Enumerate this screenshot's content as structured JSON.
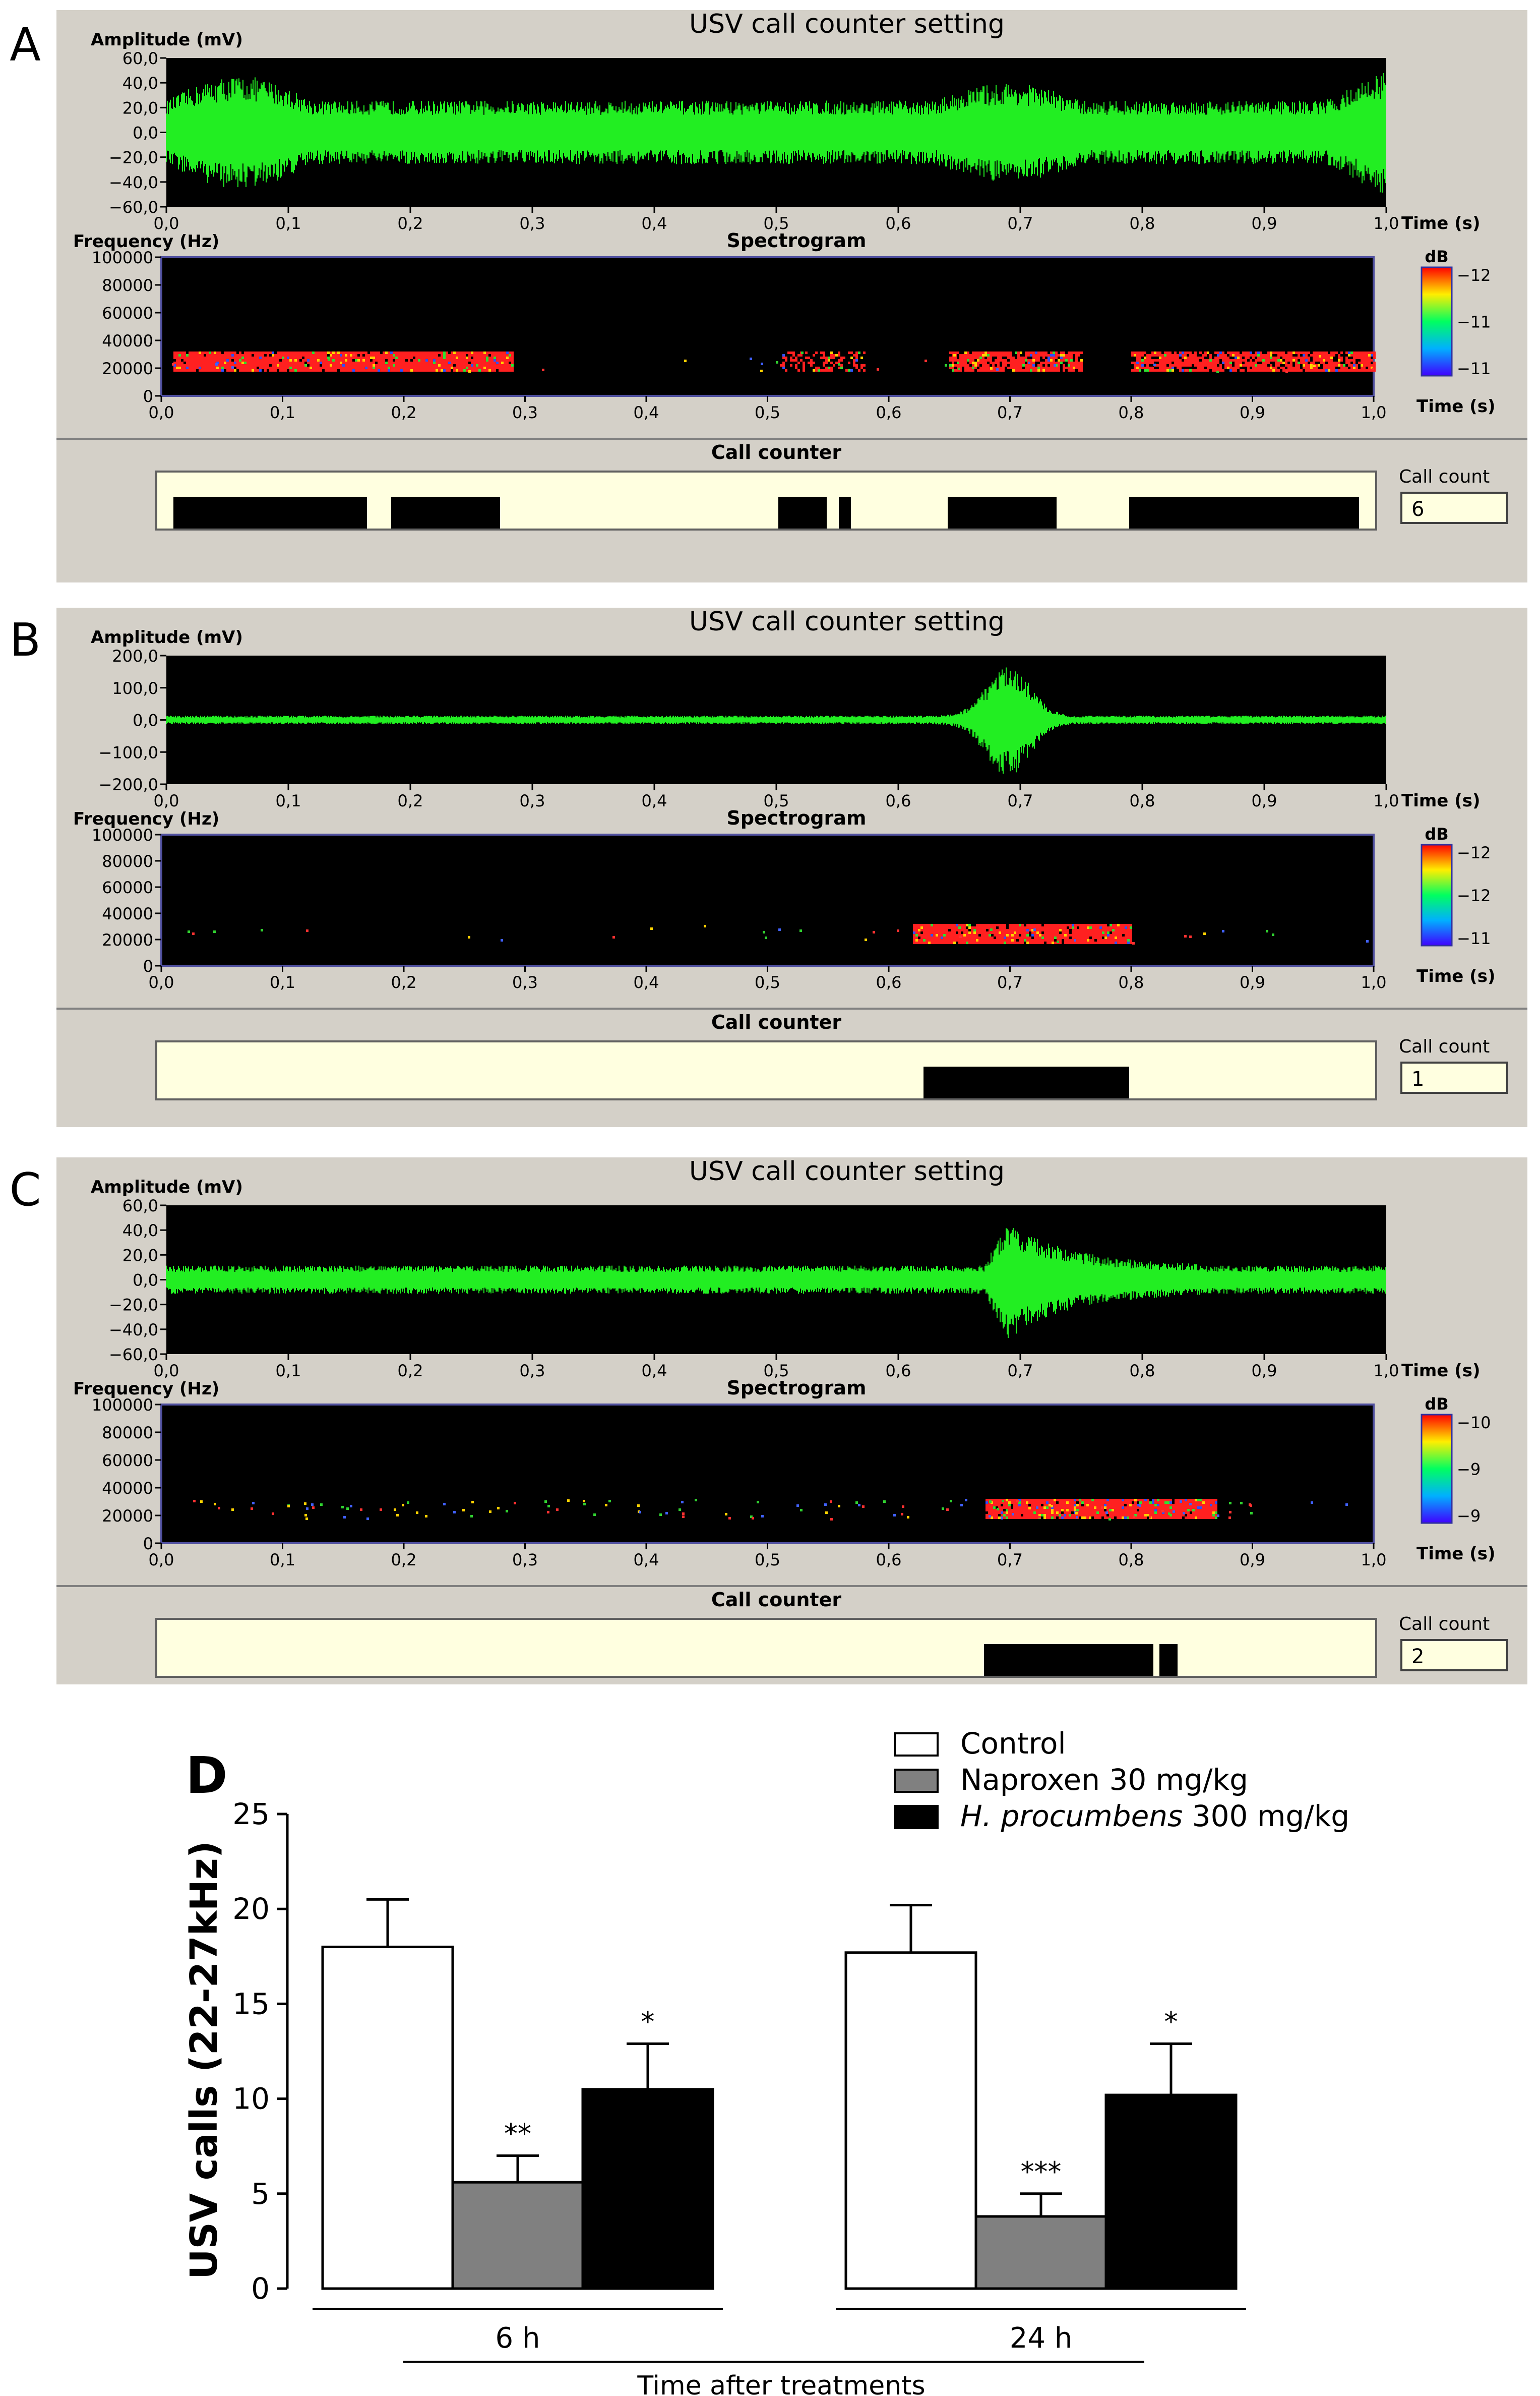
{
  "panels": [
    {
      "letter": "A",
      "title": "USV call counter setting",
      "amp_label": "Amplitude (mV)",
      "amp_ticks": [
        "60,0",
        "40,0",
        "20,0",
        "0,0",
        "−20,0",
        "−40,0",
        "−60,0"
      ],
      "time_ticks": [
        "0,0",
        "0,1",
        "0,2",
        "0,3",
        "0,4",
        "0,5",
        "0,6",
        "0,7",
        "0,8",
        "0,9",
        "1,0"
      ],
      "time_label": "Time (s)",
      "freq_label": "Frequency (Hz)",
      "spec_title": "Spectrogram",
      "freq_ticks": [
        "100000",
        "80000",
        "60000",
        "40000",
        "20000",
        "0"
      ],
      "db_label": "dB",
      "db_ticks": [
        "−12",
        "−11",
        "−11"
      ],
      "counter_title": "Call counter",
      "count_label": "Call count",
      "count_value": "6",
      "calls": [
        [
          0.01,
          0.17
        ],
        [
          0.19,
          0.28
        ],
        [
          0.51,
          0.55
        ],
        [
          0.56,
          0.57
        ],
        [
          0.65,
          0.74
        ],
        [
          0.8,
          0.99
        ]
      ]
    },
    {
      "letter": "B",
      "title": "USV call counter setting",
      "amp_label": "Amplitude (mV)",
      "amp_ticks": [
        "200,0",
        "100,0",
        "0,0",
        "−100,0",
        "−200,0"
      ],
      "time_ticks": [
        "0,0",
        "0,1",
        "0,2",
        "0,3",
        "0,4",
        "0,5",
        "0,6",
        "0,7",
        "0,8",
        "0,9",
        "1,0"
      ],
      "time_label": "Time (s)",
      "freq_label": "Frequency (Hz)",
      "spec_title": "Spectrogram",
      "freq_ticks": [
        "100000",
        "80000",
        "60000",
        "40000",
        "20000",
        "0"
      ],
      "db_label": "dB",
      "db_ticks": [
        "−12",
        "−12",
        "−11"
      ],
      "counter_title": "Call counter",
      "count_label": "Call count",
      "count_value": "1",
      "calls": [
        [
          0.63,
          0.8
        ]
      ]
    },
    {
      "letter": "C",
      "title": "USV call counter setting",
      "amp_label": "Amplitude (mV)",
      "amp_ticks": [
        "60,0",
        "40,0",
        "20,0",
        "0,0",
        "−20,0",
        "−40,0",
        "−60,0"
      ],
      "time_ticks": [
        "0,0",
        "0,1",
        "0,2",
        "0,3",
        "0,4",
        "0,5",
        "0,6",
        "0,7",
        "0,8",
        "0,9",
        "1,0"
      ],
      "time_label": "Time (s)",
      "freq_label": "Frequency (Hz)",
      "spec_title": "Spectrogram",
      "freq_ticks": [
        "100000",
        "80000",
        "60000",
        "40000",
        "20000",
        "0"
      ],
      "db_label": "dB",
      "db_ticks": [
        "−10",
        "−9",
        "−9"
      ],
      "counter_title": "Call counter",
      "count_label": "Call count",
      "count_value": "2",
      "calls": [
        [
          0.68,
          0.82
        ],
        [
          0.825,
          0.84
        ]
      ]
    }
  ],
  "colors": {
    "panel_bg": "#d4d0c8",
    "plot_bg": "#000000",
    "waveform": "#22ee22",
    "counter_bg": "#ffffe0",
    "call_bar": "#000000",
    "spec_hot": "#ff2020",
    "tick_text": "#000000"
  },
  "chart_data": {
    "type": "bar",
    "panel_letter": "D",
    "categories": [
      "6 h",
      "24 h"
    ],
    "series": [
      {
        "name": "Control",
        "color": "#ffffff",
        "values": [
          18.0,
          17.7
        ],
        "errors": [
          2.5,
          2.5
        ],
        "sig": [
          "",
          ""
        ]
      },
      {
        "name": "Naproxen 30 mg/kg",
        "color": "#808080",
        "values": [
          5.6,
          3.8
        ],
        "errors": [
          1.4,
          1.2
        ],
        "sig": [
          "**",
          "***"
        ]
      },
      {
        "name_italic": "H. procumbens",
        "name": " 300 mg/kg",
        "color": "#000000",
        "values": [
          10.5,
          10.2
        ],
        "errors": [
          2.4,
          2.7
        ],
        "sig": [
          "*",
          "*"
        ]
      }
    ],
    "ylabel": "USV calls (22-27kHz)",
    "xlabel": "Time after treatments",
    "yticks": [
      "0",
      "5",
      "10",
      "15",
      "20",
      "25"
    ],
    "ylim": [
      0,
      25
    ],
    "legend_position": "top-right"
  }
}
